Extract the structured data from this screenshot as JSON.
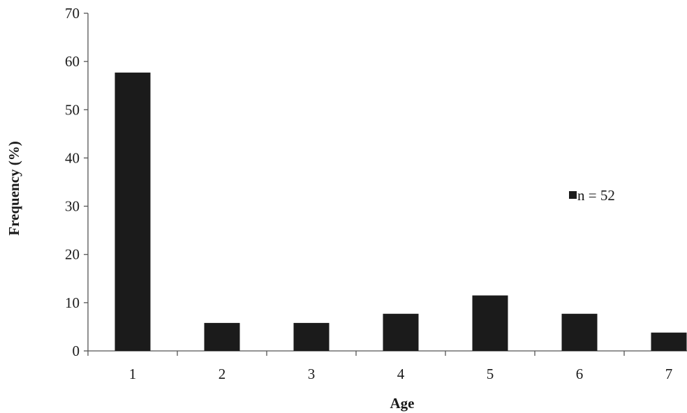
{
  "chart_data": {
    "type": "bar",
    "categories": [
      "1",
      "2",
      "3",
      "4",
      "5",
      "6",
      "7"
    ],
    "series": [
      {
        "name": "n = 52",
        "values": [
          57.7,
          5.8,
          5.8,
          7.7,
          11.5,
          7.7,
          3.8
        ],
        "color": "#1b1b1b"
      }
    ],
    "xlabel": "Age",
    "ylabel": "Frequency (%)",
    "ylim": [
      0,
      70
    ],
    "yticks": [
      "0",
      "10",
      "20",
      "30",
      "40",
      "50",
      "60",
      "70"
    ],
    "grid": false,
    "legend": {
      "label": "n = 52",
      "position": "right"
    }
  }
}
